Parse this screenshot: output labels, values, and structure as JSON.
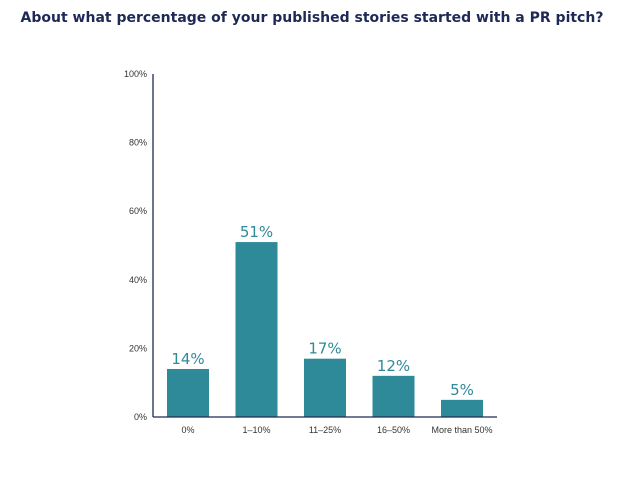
{
  "chart_data": {
    "type": "bar",
    "title": "About what percentage of your published stories started with a PR pitch?",
    "categories": [
      "0%",
      "1–10%",
      "11–25%",
      "16–50%",
      "More than 50%"
    ],
    "values": [
      14,
      51,
      17,
      12,
      5
    ],
    "data_labels": [
      "14%",
      "51%",
      "17%",
      "12%",
      "5%"
    ],
    "ylim": [
      0,
      100
    ],
    "yticks": [
      0,
      20,
      40,
      60,
      80,
      100
    ],
    "ytick_labels": [
      "0%",
      "20%",
      "40%",
      "60%",
      "80%",
      "100%"
    ],
    "xlabel": "",
    "ylabel": "",
    "grid": false,
    "legend": "none",
    "bar_color": "#2e8a99",
    "axis_color": "#1e2a55",
    "title_color": "#1e2a55"
  }
}
